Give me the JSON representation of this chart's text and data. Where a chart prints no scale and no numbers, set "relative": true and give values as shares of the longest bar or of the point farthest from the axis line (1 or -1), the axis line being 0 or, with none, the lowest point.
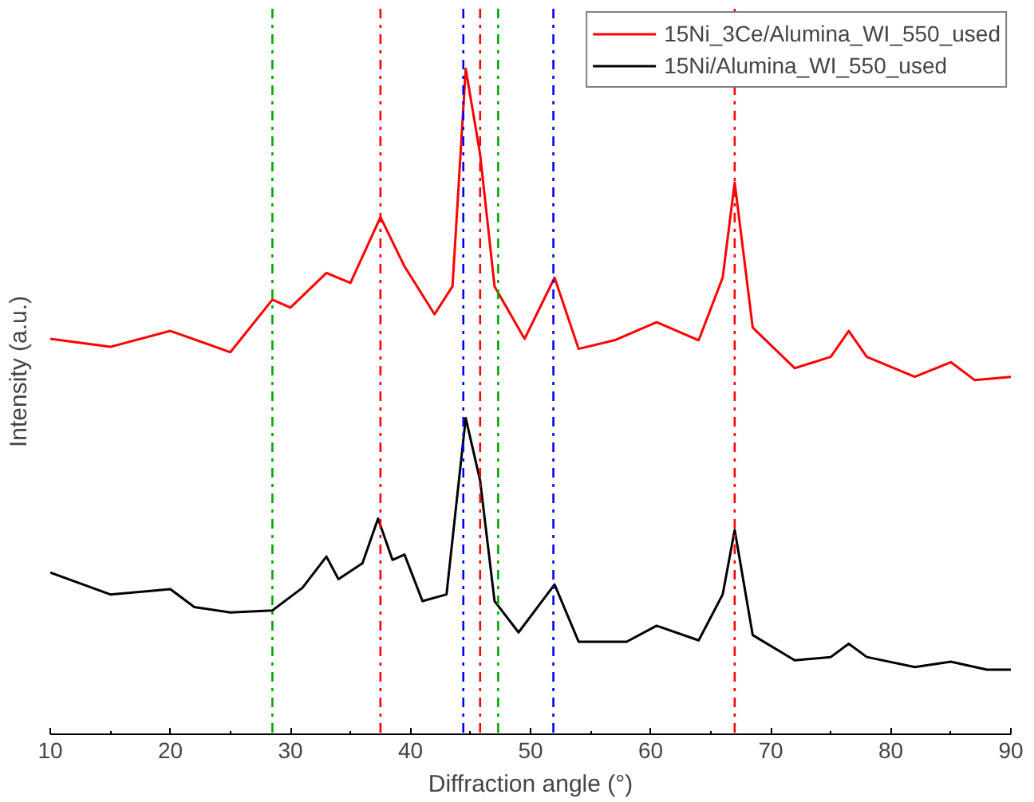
{
  "chart_data": {
    "type": "line",
    "relative": true,
    "xlabel": "Diffraction angle (°)",
    "ylabel": "Intensity (a.u.)",
    "xlim": [
      10,
      90
    ],
    "xticks": [
      10,
      20,
      30,
      40,
      50,
      60,
      70,
      80,
      90
    ],
    "tick_labels": "x",
    "grid": false,
    "legend": "top right",
    "line_style": "solid",
    "series": [
      {
        "name": "15Ni_3Ce/Alumina_WI_550_used",
        "color": "#ff0000",
        "x": [
          10,
          15,
          20,
          25,
          28.5,
          30,
          33,
          35,
          37.5,
          39.5,
          42,
          43.5,
          44.6,
          45.8,
          47,
          49.5,
          52,
          54,
          57,
          60.5,
          64,
          66,
          67,
          68.5,
          72,
          75,
          76.5,
          78,
          82,
          85,
          87,
          90
        ],
        "values": [
          0.594,
          0.582,
          0.606,
          0.574,
          0.653,
          0.641,
          0.693,
          0.678,
          0.777,
          0.703,
          0.631,
          0.673,
          1.0,
          0.871,
          0.673,
          0.594,
          0.686,
          0.579,
          0.592,
          0.619,
          0.592,
          0.686,
          0.829,
          0.611,
          0.55,
          0.567,
          0.606,
          0.567,
          0.537,
          0.559,
          0.532,
          0.537
        ]
      },
      {
        "name": "15Ni/Alumina_WI_550_used",
        "color": "#000000",
        "x": [
          10,
          15,
          20,
          22,
          25,
          28.5,
          31,
          33,
          34,
          36,
          37.3,
          38.5,
          39.5,
          41,
          43,
          44.6,
          45.8,
          47,
          49,
          52,
          54,
          58,
          60.5,
          64,
          66,
          67,
          68.5,
          72,
          75,
          76.5,
          78,
          82,
          85,
          88,
          90
        ],
        "values": [
          0.243,
          0.21,
          0.218,
          0.191,
          0.183,
          0.186,
          0.22,
          0.267,
          0.233,
          0.257,
          0.324,
          0.262,
          0.27,
          0.2,
          0.21,
          0.475,
          0.381,
          0.2,
          0.153,
          0.225,
          0.139,
          0.139,
          0.163,
          0.141,
          0.21,
          0.307,
          0.149,
          0.111,
          0.116,
          0.136,
          0.116,
          0.101,
          0.109,
          0.097,
          0.097
        ]
      }
    ],
    "ref_lines": [
      {
        "axis": "x",
        "value": 28.5,
        "color": "#00aa00",
        "line_style": "dashdot"
      },
      {
        "axis": "x",
        "value": 37.5,
        "color": "#ff0000",
        "line_style": "dashdot"
      },
      {
        "axis": "x",
        "value": 44.4,
        "color": "#0000ff",
        "line_style": "dashdot"
      },
      {
        "axis": "x",
        "value": 45.8,
        "color": "#ff0000",
        "line_style": "dashdot"
      },
      {
        "axis": "x",
        "value": 47.3,
        "color": "#00aa00",
        "line_style": "dashdot"
      },
      {
        "axis": "x",
        "value": 51.9,
        "color": "#0000ff",
        "line_style": "dashdot"
      },
      {
        "axis": "x",
        "value": 67.0,
        "color": "#ff0000",
        "line_style": "dashdot"
      }
    ]
  }
}
